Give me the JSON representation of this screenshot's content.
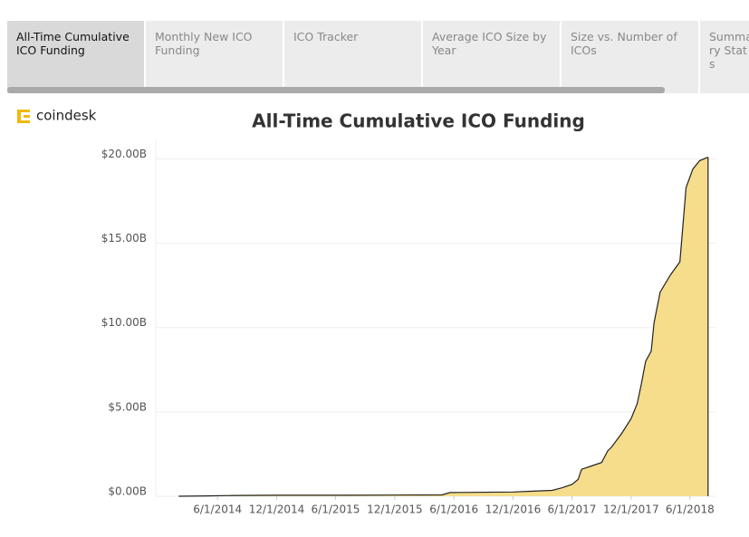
{
  "tabs": [
    "All-Time Cumulative ICO Funding",
    "Monthly New ICO Funding",
    "ICO Tracker",
    "Average ICO Size by Year",
    "Size vs. Number of ICOs",
    "Summary Stats"
  ],
  "active_tab": 0,
  "logo": "coindesk",
  "chart_data": {
    "type": "area",
    "title": "All-Time Cumulative ICO Funding",
    "x": [
      "2/1/2014",
      "5/1/2014",
      "8/1/2014",
      "12/1/2014",
      "6/1/2015",
      "12/1/2015",
      "4/25/2016",
      "5/20/2016",
      "12/1/2016",
      "2/1/2017",
      "4/1/2017",
      "5/1/2017",
      "6/1/2017",
      "6/20/2017",
      "7/1/2017",
      "8/1/2017",
      "9/1/2017",
      "9/20/2017",
      "10/1/2017",
      "11/1/2017",
      "12/1/2017",
      "12/20/2017",
      "1/1/2018",
      "1/15/2018",
      "2/1/2018",
      "2/10/2018",
      "3/1/2018",
      "4/1/2018",
      "5/1/2018",
      "5/20/2018",
      "6/10/2018",
      "7/1/2018",
      "7/27/2018"
    ],
    "values": [
      0,
      0.02,
      0.05,
      0.06,
      0.06,
      0.07,
      0.08,
      0.22,
      0.25,
      0.3,
      0.35,
      0.5,
      0.7,
      1.0,
      1.6,
      1.8,
      2.0,
      2.7,
      2.9,
      3.7,
      4.6,
      5.5,
      6.6,
      8.0,
      8.6,
      10.3,
      12.1,
      13.1,
      13.9,
      18.3,
      19.4,
      19.9,
      20.1
    ],
    "color": "#f5dd8c",
    "line_color": "#222222",
    "xlim": [
      "11/22/2013",
      "8/19/2018"
    ],
    "xticks": [
      "6/1/2014",
      "12/1/2014",
      "6/1/2015",
      "12/1/2015",
      "6/1/2016",
      "12/1/2016",
      "6/1/2017",
      "12/1/2017",
      "6/1/2018"
    ],
    "ylim": [
      0,
      21.1
    ],
    "yticks": [
      {
        "value": 0,
        "label": "$0.00B"
      },
      {
        "value": 5,
        "label": "$5.00B"
      },
      {
        "value": 10,
        "label": "$10.00B"
      },
      {
        "value": 15,
        "label": "$15.00B"
      },
      {
        "value": 20,
        "label": "$20.00B"
      }
    ],
    "grid": true
  }
}
